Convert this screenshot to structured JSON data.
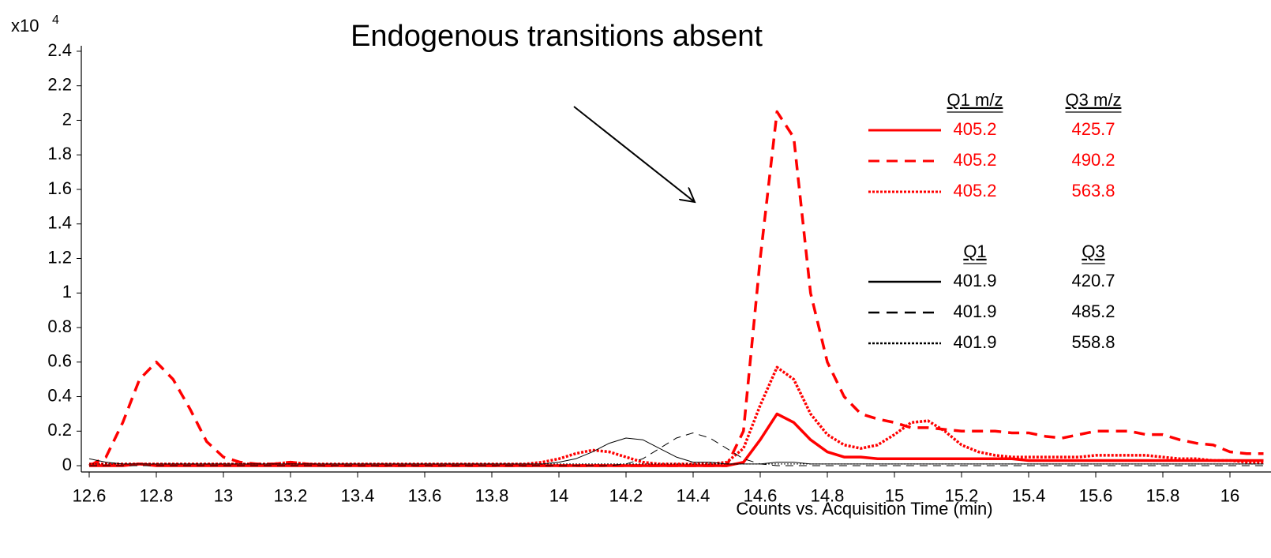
{
  "chart_data": {
    "type": "line",
    "title": "Endogenous transitions absent",
    "x_label": "Counts vs. Acquisition Time (min)",
    "y_multiplier": "x10",
    "y_exponent": "4",
    "xlim": [
      12.58,
      16.12
    ],
    "ylim": [
      -0.03,
      2.45
    ],
    "xticks": [
      12.6,
      12.8,
      13,
      13.2,
      13.4,
      13.6,
      13.8,
      14,
      14.2,
      14.4,
      14.6,
      14.8,
      15,
      15.2,
      15.4,
      15.6,
      15.8,
      16
    ],
    "yticks": [
      0,
      0.2,
      0.4,
      0.6,
      0.8,
      1,
      1.2,
      1.4,
      1.6,
      1.8,
      2,
      2.2,
      2.4
    ],
    "grid": false,
    "legend_position": "upper right",
    "legend_headers": {
      "red": [
        "Q1 m/z",
        "Q3 m/z"
      ],
      "black": [
        "Q1",
        "Q3"
      ]
    },
    "x": [
      12.6,
      12.65,
      12.7,
      12.75,
      12.8,
      12.85,
      12.9,
      12.95,
      13,
      13.05,
      13.1,
      13.15,
      13.2,
      13.25,
      13.3,
      13.35,
      13.4,
      13.45,
      13.5,
      13.55,
      13.6,
      13.65,
      13.7,
      13.75,
      13.8,
      13.85,
      13.9,
      13.95,
      14,
      14.05,
      14.1,
      14.15,
      14.2,
      14.25,
      14.3,
      14.35,
      14.4,
      14.45,
      14.5,
      14.55,
      14.6,
      14.65,
      14.7,
      14.75,
      14.8,
      14.85,
      14.9,
      14.95,
      15,
      15.05,
      15.1,
      15.15,
      15.2,
      15.25,
      15.3,
      15.35,
      15.4,
      15.45,
      15.5,
      15.55,
      15.6,
      15.65,
      15.7,
      15.75,
      15.8,
      15.85,
      15.9,
      15.95,
      16,
      16.05,
      16.1
    ],
    "series": [
      {
        "q1": "405.2",
        "q3": "425.7",
        "color": "#ff0000",
        "line_style": "solid",
        "line_width": 3.5,
        "group": "red",
        "values": [
          0,
          0,
          0,
          0.01,
          0,
          0,
          0,
          0,
          0,
          0,
          0,
          0,
          0,
          0,
          0,
          0,
          0,
          0,
          0,
          0,
          0,
          0,
          0,
          0,
          0,
          0,
          0,
          0,
          0,
          0,
          0,
          0,
          0,
          0,
          0,
          0,
          0,
          0,
          0,
          0.02,
          0.15,
          0.3,
          0.25,
          0.15,
          0.08,
          0.05,
          0.05,
          0.04,
          0.04,
          0.04,
          0.04,
          0.04,
          0.04,
          0.04,
          0.04,
          0.04,
          0.03,
          0.03,
          0.03,
          0.03,
          0.03,
          0.03,
          0.03,
          0.03,
          0.03,
          0.03,
          0.03,
          0.03,
          0.03,
          0.03,
          0.03
        ]
      },
      {
        "q1": "405.2",
        "q3": "490.2",
        "color": "#ff0000",
        "line_style": "dashed",
        "line_width": 3.5,
        "group": "red",
        "values": [
          0,
          0.05,
          0.25,
          0.5,
          0.6,
          0.5,
          0.33,
          0.14,
          0.05,
          0.02,
          0.01,
          0.01,
          0.02,
          0.01,
          0,
          0,
          0,
          0,
          0,
          0,
          0,
          0,
          0,
          0,
          0,
          0,
          0,
          0,
          0,
          0,
          0,
          0,
          0,
          0,
          0,
          0,
          0,
          0,
          0,
          0.2,
          1.2,
          2.05,
          1.9,
          1.0,
          0.6,
          0.4,
          0.3,
          0.27,
          0.25,
          0.22,
          0.22,
          0.21,
          0.2,
          0.2,
          0.2,
          0.19,
          0.19,
          0.17,
          0.16,
          0.18,
          0.2,
          0.2,
          0.2,
          0.18,
          0.18,
          0.15,
          0.13,
          0.12,
          0.08,
          0.07,
          0.07
        ]
      },
      {
        "q1": "405.2",
        "q3": "563.8",
        "color": "#ff0000",
        "line_style": "dotted",
        "line_width": 3.5,
        "group": "red",
        "values": [
          0.01,
          0.01,
          0.01,
          0.01,
          0.01,
          0.01,
          0.01,
          0.01,
          0.01,
          0.01,
          0.01,
          0.01,
          0.02,
          0.01,
          0.01,
          0.01,
          0.01,
          0.01,
          0.01,
          0.01,
          0.01,
          0.01,
          0.01,
          0.01,
          0.01,
          0.01,
          0.01,
          0.02,
          0.04,
          0.07,
          0.09,
          0.08,
          0.05,
          0.02,
          0.01,
          0.01,
          0.01,
          0.01,
          0.02,
          0.1,
          0.35,
          0.57,
          0.5,
          0.3,
          0.18,
          0.12,
          0.1,
          0.12,
          0.18,
          0.25,
          0.26,
          0.2,
          0.12,
          0.08,
          0.06,
          0.05,
          0.05,
          0.05,
          0.05,
          0.05,
          0.06,
          0.06,
          0.06,
          0.06,
          0.05,
          0.04,
          0.04,
          0.03,
          0.03,
          0.02,
          0.02
        ]
      },
      {
        "q1": "401.9",
        "q3": "420.7",
        "color": "#000000",
        "line_style": "solid",
        "line_width": 1,
        "group": "black",
        "values": [
          0.04,
          0.02,
          0.01,
          0.01,
          0.01,
          0.01,
          0.01,
          0.01,
          0.01,
          0.01,
          0.01,
          0.01,
          0.01,
          0.01,
          0.01,
          0.01,
          0.01,
          0.01,
          0.01,
          0.01,
          0.01,
          0.01,
          0.01,
          0.01,
          0.01,
          0.01,
          0.01,
          0.01,
          0.02,
          0.04,
          0.08,
          0.13,
          0.16,
          0.15,
          0.1,
          0.05,
          0.02,
          0.02,
          0.01,
          0.01,
          0.01,
          0.02,
          0.02,
          0.01,
          0.01,
          0.01,
          0.01,
          0.01,
          0.01,
          0.01,
          0.01,
          0.01,
          0.01,
          0.01,
          0.01,
          0.01,
          0.01,
          0.01,
          0.01,
          0.01,
          0.01,
          0.01,
          0.01,
          0.01,
          0.01,
          0.01,
          0.01,
          0.01,
          0.01,
          0.01,
          0.01
        ]
      },
      {
        "q1": "401.9",
        "q3": "485.2",
        "color": "#000000",
        "line_style": "dashed",
        "line_width": 1,
        "group": "black",
        "values": [
          0,
          0,
          0,
          0,
          0,
          0,
          0,
          0,
          0,
          0,
          0,
          0,
          0,
          0,
          0,
          0,
          0,
          0,
          0,
          0,
          0,
          0,
          0,
          0,
          0,
          0,
          0,
          0,
          0,
          0,
          0,
          0,
          0.01,
          0.04,
          0.1,
          0.16,
          0.19,
          0.16,
          0.1,
          0.04,
          0.01,
          0,
          0,
          0,
          0,
          0,
          0,
          0,
          0,
          0,
          0,
          0,
          0,
          0,
          0,
          0,
          0,
          0,
          0,
          0,
          0,
          0,
          0,
          0,
          0,
          0,
          0,
          0,
          0,
          0,
          0
        ]
      },
      {
        "q1": "401.9",
        "q3": "558.8",
        "color": "#000000",
        "line_style": "dotted",
        "line_width": 1,
        "group": "black",
        "values": [
          0.01,
          0.01,
          0.01,
          0.01,
          0.01,
          0.01,
          0.01,
          0.01,
          0.01,
          0.01,
          0.01,
          0.01,
          0.01,
          0.01,
          0.01,
          0.01,
          0.01,
          0.01,
          0.01,
          0.01,
          0.01,
          0.01,
          0.01,
          0.01,
          0.01,
          0.01,
          0.01,
          0.01,
          0.01,
          0.01,
          0.01,
          0.01,
          0.01,
          0.01,
          0.01,
          0.01,
          0.01,
          0.01,
          0.01,
          0.01,
          0.01,
          0.01,
          0.01,
          0.01,
          0.01,
          0.01,
          0.01,
          0.01,
          0.01,
          0.01,
          0.01,
          0.01,
          0.01,
          0.01,
          0.01,
          0.01,
          0.01,
          0.01,
          0.01,
          0.01,
          0.01,
          0.01,
          0.01,
          0.01,
          0.01,
          0.01,
          0.01,
          0.01,
          0.01,
          0.01,
          0.01
        ]
      }
    ]
  }
}
